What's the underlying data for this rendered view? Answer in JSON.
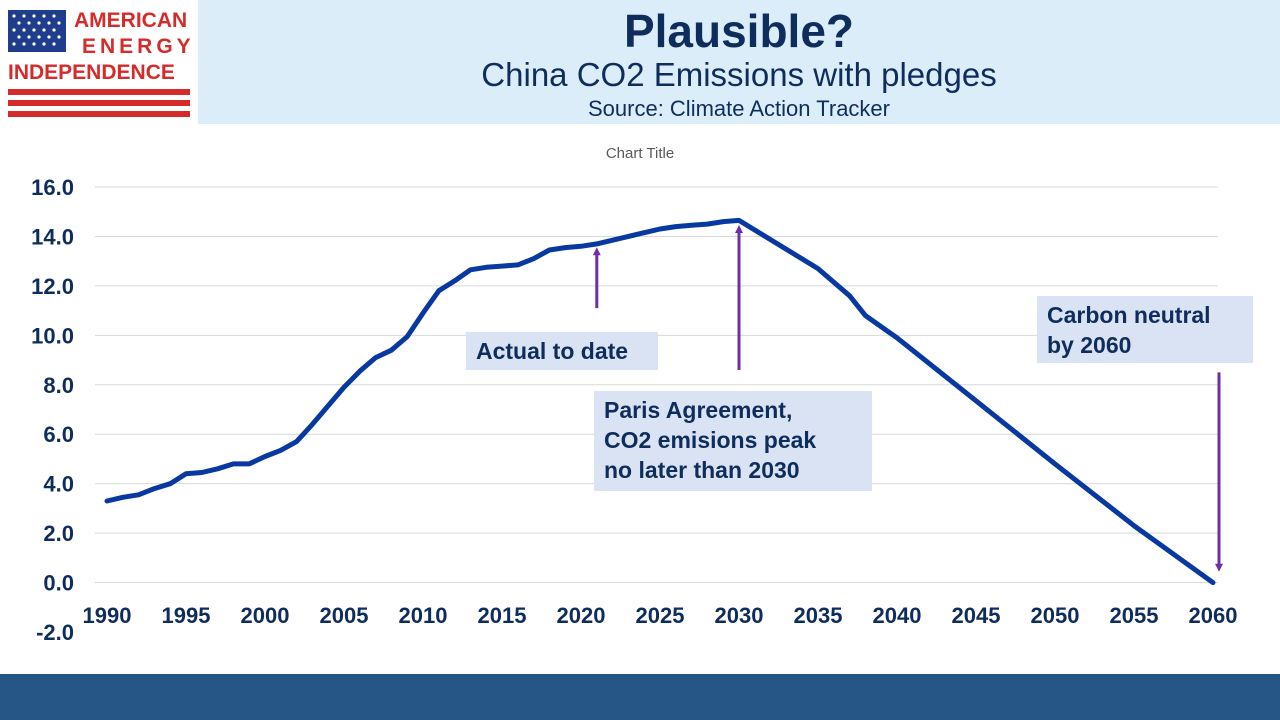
{
  "logo": {
    "line1": "AMERICAN",
    "line2": "ENERGY",
    "line3": "INDEPENDENCE"
  },
  "header": {
    "title": "Plausible?",
    "subtitle": "China CO2 Emissions with pledges",
    "source": "Source: Climate Action Tracker"
  },
  "colors": {
    "series": "#0839a0",
    "arrow": "#7030a0",
    "header_bg": "#dcedfa",
    "callout_bg": "#dae3f3",
    "footer": "#265686",
    "text": "#0f2d5c"
  },
  "callouts": {
    "actual": {
      "lines": [
        "Actual to date"
      ]
    },
    "paris": {
      "lines": [
        "Paris Agreement,",
        "CO2 emisions peak",
        "no later than 2030"
      ]
    },
    "neutral": {
      "lines": [
        "Carbon neutral",
        "by 2060"
      ]
    }
  },
  "chart_data": {
    "type": "line",
    "title": "Chart Title",
    "xlabel": "",
    "ylabel": "",
    "xlim": [
      1990,
      2060
    ],
    "ylim": [
      -2,
      16
    ],
    "x_ticks": [
      "1990",
      "1995",
      "2000",
      "2005",
      "2010",
      "2015",
      "2020",
      "2025",
      "2030",
      "2035",
      "2040",
      "2045",
      "2050",
      "2055",
      "2060"
    ],
    "y_ticks": [
      "-2.0",
      "0.0",
      "2.0",
      "4.0",
      "6.0",
      "8.0",
      "10.0",
      "12.0",
      "14.0",
      "16.0"
    ],
    "grid": true,
    "legend": "none",
    "series": [
      {
        "x": [
          1990,
          1991,
          1992,
          1993,
          1994,
          1995,
          1996,
          1997,
          1998,
          1999,
          2000,
          2001,
          2002,
          2003,
          2004,
          2005,
          2006,
          2007,
          2008,
          2009,
          2010,
          2011,
          2012,
          2013,
          2014,
          2015,
          2016,
          2017,
          2018,
          2019,
          2020,
          2021,
          2022,
          2023,
          2024,
          2025,
          2026,
          2027,
          2028,
          2029,
          2030,
          2035,
          2037,
          2038,
          2040,
          2045,
          2050,
          2055,
          2060
        ],
        "values": [
          3.3,
          3.45,
          3.55,
          3.8,
          4.0,
          4.4,
          4.45,
          4.6,
          4.8,
          4.8,
          5.1,
          5.35,
          5.7,
          6.4,
          7.15,
          7.9,
          8.55,
          9.1,
          9.4,
          9.95,
          10.9,
          11.8,
          12.2,
          12.65,
          12.75,
          12.8,
          12.85,
          13.1,
          13.45,
          13.55,
          13.6,
          13.7,
          13.85,
          14.0,
          14.15,
          14.3,
          14.4,
          14.45,
          14.5,
          14.6,
          14.65,
          12.7,
          11.6,
          10.8,
          9.9,
          7.35,
          4.8,
          2.3,
          0.0
        ]
      }
    ],
    "annotations": [
      {
        "text": "Actual to date",
        "arrow_x": 2021,
        "arrow_from_y": 11.1,
        "arrow_to_y": 13.4
      },
      {
        "text": "Paris Agreement, CO2 emisions peak no later than 2030",
        "arrow_x": 2030,
        "arrow_from_y": 8.6,
        "arrow_to_y": 14.3
      },
      {
        "text": "Carbon neutral by 2060",
        "arrow_x": 2060,
        "arrow_from_y": 8.5,
        "arrow_to_y": 0.6
      }
    ]
  }
}
